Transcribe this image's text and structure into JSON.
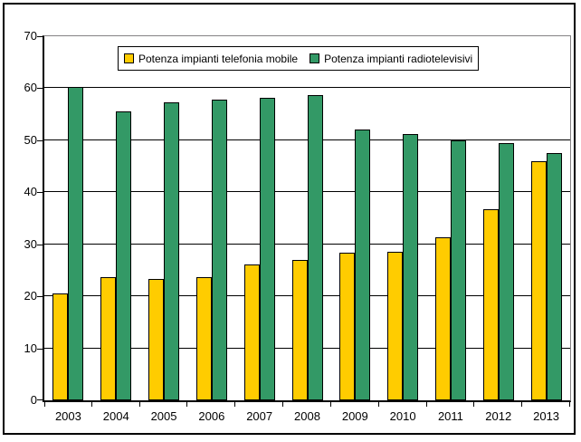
{
  "chart_data": {
    "type": "bar",
    "title": "",
    "xlabel": "",
    "ylabel": "",
    "categories": [
      "2003",
      "2004",
      "2005",
      "2006",
      "2007",
      "2008",
      "2009",
      "2010",
      "2011",
      "2012",
      "2013"
    ],
    "series": [
      {
        "name": "Potenza impianti telefonia mobile",
        "key": "telefonia-mobile",
        "color": "#FFCC00",
        "values": [
          20.6,
          23.7,
          23.4,
          23.7,
          26.2,
          27.0,
          28.4,
          28.6,
          31.4,
          36.8,
          45.9
        ]
      },
      {
        "name": "Potenza impianti radiotelevisivi",
        "key": "radiotelevisivi",
        "color": "#339966",
        "values": [
          60.2,
          55.5,
          57.3,
          57.9,
          58.2,
          58.6,
          52.0,
          51.2,
          49.9,
          49.4,
          47.6
        ]
      }
    ],
    "ylim": [
      0,
      70
    ],
    "ytick_interval": 10,
    "yticks": [
      "0",
      "10",
      "20",
      "30",
      "40",
      "50",
      "60",
      "70"
    ],
    "grid": true,
    "grid_color": "#000000",
    "plot_border_color": "#848284",
    "background": "#FFFFFF",
    "legend_position": "top-center"
  }
}
